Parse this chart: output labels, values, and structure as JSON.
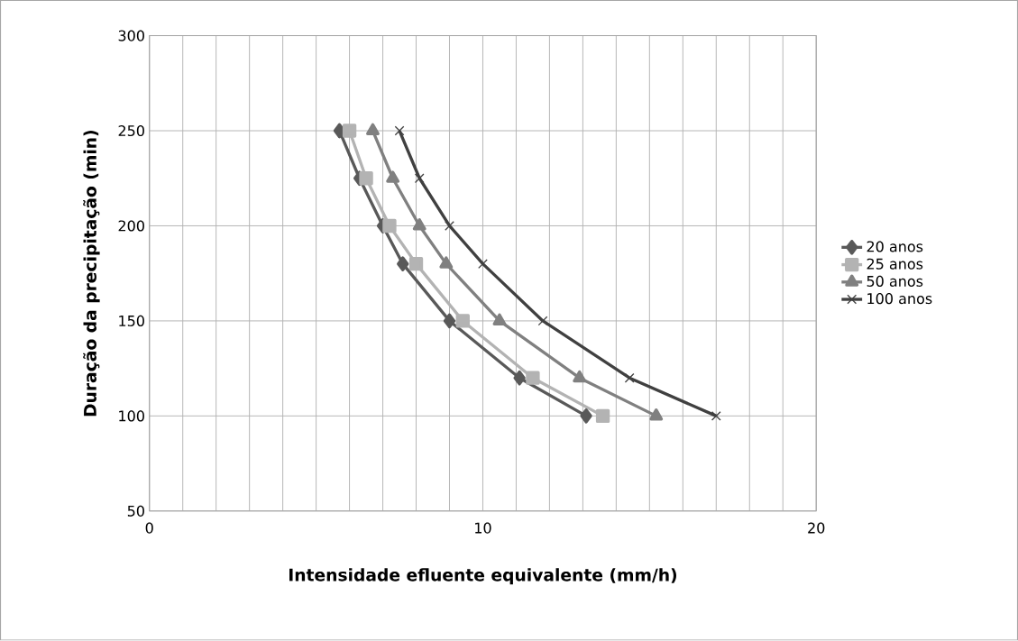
{
  "chart_data": {
    "type": "line",
    "xlabel": "Intensidade efluente equivalente (mm/h)",
    "ylabel": "Duração da precipitação (min)",
    "xlim": [
      0,
      20
    ],
    "ylim": [
      50,
      300
    ],
    "xticks": [
      0,
      {
        "value": 1,
        "label": null
      },
      {
        "value": 2,
        "label": null
      },
      {
        "value": 3,
        "label": null
      },
      {
        "value": 4,
        "label": null
      },
      {
        "value": 5,
        "label": null
      },
      {
        "value": 6,
        "label": null
      },
      {
        "value": 7,
        "label": null
      },
      {
        "value": 8,
        "label": null
      },
      {
        "value": 9,
        "label": null
      },
      10,
      {
        "value": 11,
        "label": null
      },
      {
        "value": 12,
        "label": null
      },
      {
        "value": 13,
        "label": null
      },
      {
        "value": 14,
        "label": null
      },
      {
        "value": 15,
        "label": null
      },
      {
        "value": 16,
        "label": null
      },
      {
        "value": 17,
        "label": null
      },
      {
        "value": 18,
        "label": null
      },
      {
        "value": 19,
        "label": null
      },
      20
    ],
    "yticks": [
      50,
      100,
      150,
      200,
      250,
      300
    ],
    "grid": true,
    "legend": "right",
    "series": [
      {
        "name": "20 anos",
        "color": "#595959",
        "marker": "diamond",
        "x": [
          5.7,
          6.3,
          7.0,
          7.6,
          9.0,
          11.1,
          13.1
        ],
        "values": [
          250,
          225,
          200,
          180,
          150,
          120,
          100
        ]
      },
      {
        "name": "25 anos",
        "color": "#b3b3b3",
        "marker": "square",
        "x": [
          6.0,
          6.5,
          7.2,
          8.0,
          9.4,
          11.5,
          13.6
        ],
        "values": [
          250,
          225,
          200,
          180,
          150,
          120,
          100
        ]
      },
      {
        "name": "50 anos",
        "color": "#808080",
        "marker": "triangle",
        "x": [
          6.7,
          7.3,
          8.1,
          8.9,
          10.5,
          12.9,
          15.2
        ],
        "values": [
          250,
          225,
          200,
          180,
          150,
          120,
          100
        ]
      },
      {
        "name": "100 anos",
        "color": "#404040",
        "marker": "cross",
        "x": [
          7.5,
          8.1,
          9.0,
          10.0,
          11.8,
          14.4,
          17.0
        ],
        "values": [
          250,
          225,
          200,
          180,
          150,
          120,
          100
        ]
      }
    ]
  }
}
